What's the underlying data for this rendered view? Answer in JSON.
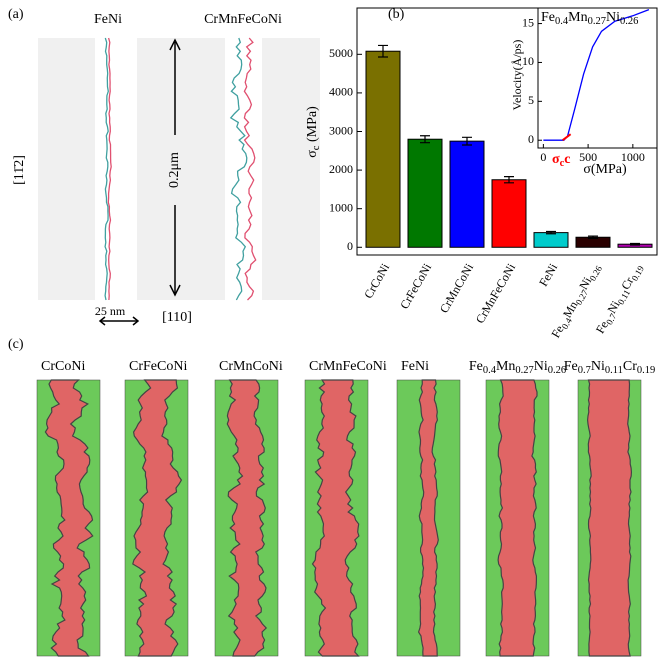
{
  "panel_labels": [
    "(a)",
    "(b)",
    "(c)"
  ],
  "panel_a": {
    "labels": [
      "FeNi",
      "CrMnFeCoNi"
    ],
    "direction_vertical": "[11̄2]",
    "scale_bar": "0.2μm",
    "scale_small": "25 nm",
    "direction_horizontal": "[110]"
  },
  "chart_data": [
    {
      "type": "bar",
      "ylabel": "σc (MPa)",
      "categories": [
        "CrCoNi",
        "CrFeCoNi",
        "CrMnCoNi",
        "CrMnFeCoNi",
        "FeNi",
        "Fe0.4Mn0.27Ni0.26",
        "Fe0.7Ni0.11Cr0.19"
      ],
      "values": [
        5080,
        2800,
        2750,
        1750,
        380,
        260,
        80
      ],
      "errors": [
        150,
        90,
        100,
        80,
        30,
        30,
        20
      ],
      "colors": [
        "#7a7000",
        "#007800",
        "#0000ff",
        "#ff0000",
        "#00cccc",
        "#2a0000",
        "#b000b0"
      ],
      "ylim": [
        -200,
        6200
      ],
      "yticks": [
        0,
        1000,
        2000,
        3000,
        4000,
        5000
      ]
    },
    {
      "type": "line",
      "xlabel": "σ(MPa)",
      "ylabel": "Velocity(Å/ps)",
      "annotation": "Fe0.4Mn0.27Ni0.26",
      "critical_label": "σc",
      "x": [
        0,
        230,
        270,
        350,
        450,
        550,
        650,
        800,
        1000,
        1180
      ],
      "series": [
        {
          "color": "#0000ff",
          "values": [
            0,
            0,
            0.5,
            4,
            8.5,
            12,
            14,
            15.3,
            16,
            16.8
          ]
        }
      ],
      "critical_value": 260,
      "critical_color": "#ff0000",
      "xlim": [
        -60,
        1270
      ],
      "ylim": [
        -1,
        17
      ],
      "xticks": [
        0,
        500,
        1000
      ],
      "yticks": [
        0,
        5,
        10,
        15
      ]
    }
  ],
  "panel_c": {
    "labels": [
      "CrCoNi",
      "CrFeCoNi",
      "CrMnCoNi",
      "CrMnFeCoNi",
      "FeNi",
      "Fe0.4Mn0.27Ni0.26",
      "Fe0.7Ni0.11Cr0.19"
    ]
  }
}
